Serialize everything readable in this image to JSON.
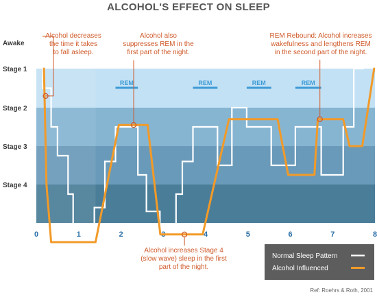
{
  "chart_data": {
    "type": "line",
    "title": "ALCOHOL'S EFFECT ON SLEEP",
    "xlim": [
      0,
      8
    ],
    "x_ticks": [
      "0",
      "1",
      "2",
      "3",
      "4",
      "5",
      "6",
      "7",
      "8"
    ],
    "stages": [
      "Awake",
      "Stage 1",
      "Stage 2",
      "Stage 3",
      "Stage 4"
    ],
    "rem_labels": [
      {
        "text": "REM",
        "x1": 1.87,
        "x2": 2.4
      },
      {
        "text": "REM",
        "x1": 3.7,
        "x2": 4.28
      },
      {
        "text": "REM",
        "x1": 4.97,
        "x2": 5.55
      },
      {
        "text": "REM",
        "x1": 6.12,
        "x2": 6.73
      }
    ],
    "series": [
      {
        "name": "Normal Sleep Pattern",
        "color": "#ffffff",
        "points": [
          [
            0.15,
            0
          ],
          [
            0.15,
            1.5
          ],
          [
            0.35,
            1.5
          ],
          [
            0.35,
            2.5
          ],
          [
            0.5,
            2.5
          ],
          [
            0.5,
            3.25
          ],
          [
            0.75,
            3.25
          ],
          [
            0.75,
            4.25
          ],
          [
            0.87,
            4.25
          ],
          [
            0.87,
            5.4
          ],
          [
            1.37,
            5.4
          ],
          [
            1.37,
            4.6
          ],
          [
            1.62,
            4.6
          ],
          [
            1.62,
            3.4
          ],
          [
            1.87,
            3.4
          ],
          [
            1.87,
            2.5
          ],
          [
            2.4,
            2.5
          ],
          [
            2.4,
            3.75
          ],
          [
            2.6,
            3.75
          ],
          [
            2.6,
            4.7
          ],
          [
            2.92,
            4.7
          ],
          [
            2.92,
            5.65
          ],
          [
            3.3,
            5.65
          ],
          [
            3.3,
            4.25
          ],
          [
            3.45,
            4.25
          ],
          [
            3.45,
            3.4
          ],
          [
            3.7,
            3.4
          ],
          [
            3.7,
            2.5
          ],
          [
            4.28,
            2.5
          ],
          [
            4.28,
            3.5
          ],
          [
            4.62,
            3.5
          ],
          [
            4.62,
            2.0
          ],
          [
            4.97,
            2.0
          ],
          [
            4.97,
            2.5
          ],
          [
            5.55,
            2.5
          ],
          [
            5.55,
            3.5
          ],
          [
            6.12,
            3.5
          ],
          [
            6.12,
            2.5
          ],
          [
            6.73,
            2.5
          ],
          [
            6.73,
            3.75
          ],
          [
            7.25,
            3.75
          ],
          [
            7.25,
            2.5
          ],
          [
            7.5,
            2.5
          ],
          [
            7.5,
            1.0
          ],
          [
            7.72,
            1.0
          ],
          [
            7.72,
            0.4
          ]
        ]
      },
      {
        "name": "Alcohol Influenced",
        "color": "#f29a28",
        "points": [
          [
            0.18,
            1.0
          ],
          [
            0.24,
            4.0
          ],
          [
            0.35,
            5.5
          ],
          [
            1.4,
            5.5
          ],
          [
            1.95,
            2.45
          ],
          [
            2.63,
            2.45
          ],
          [
            2.93,
            5.3
          ],
          [
            3.93,
            5.3
          ],
          [
            4.55,
            2.3
          ],
          [
            5.7,
            2.3
          ],
          [
            5.95,
            3.75
          ],
          [
            6.57,
            3.75
          ],
          [
            6.65,
            2.3
          ],
          [
            7.25,
            2.3
          ],
          [
            7.4,
            3.0
          ],
          [
            7.7,
            3.0
          ],
          [
            7.98,
            1.0
          ]
        ]
      }
    ],
    "annotations": [
      {
        "lines": [
          "Alcohol decreases",
          "the time it takes",
          "to fall asleep."
        ]
      },
      {
        "lines": [
          "Alcohol also",
          "suppresses REM in the",
          "first part of the night."
        ]
      },
      {
        "lines": [
          "REM Rebound: Alcohol increases",
          "wakefulness and lengthens REM",
          "in the second part of the night."
        ]
      },
      {
        "lines": [
          "Alcohol increases Stage 4",
          "(slow wave) sleep in the first",
          "part of the night."
        ]
      }
    ],
    "legend_placement": "bottom-right",
    "reference": "Ref: Roehrs & Roth, 2001"
  }
}
